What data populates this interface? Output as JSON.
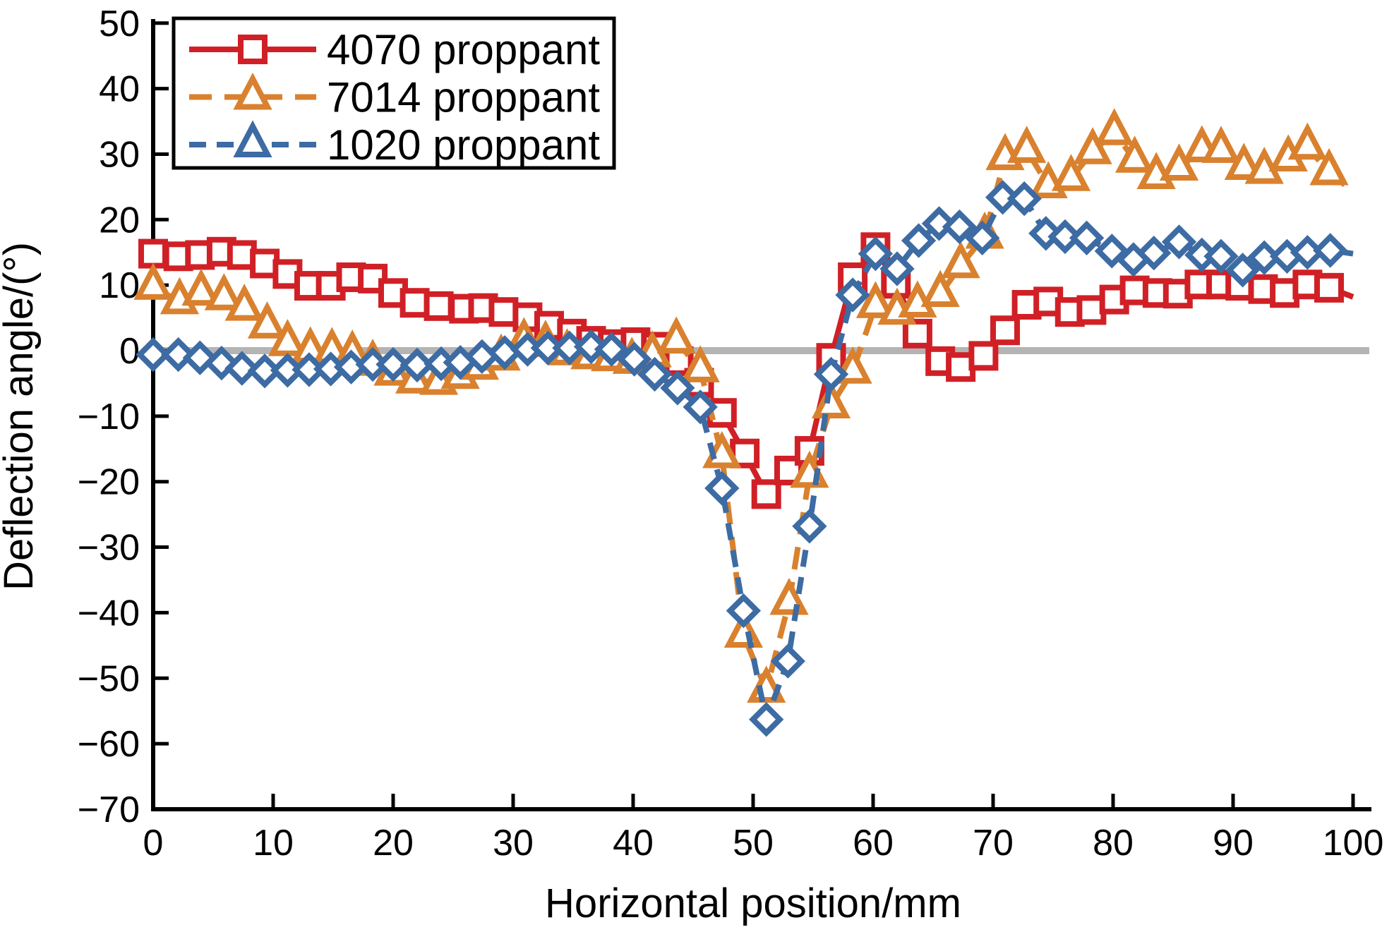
{
  "figure": {
    "background": "#ffffff",
    "axis_color": "#000000",
    "x_tick_labels": [
      "0",
      "10",
      "20",
      "30",
      "40",
      "50",
      "60",
      "70",
      "80",
      "90",
      "100"
    ],
    "y_tick_labels": [
      "−70",
      "−60",
      "−50",
      "−40",
      "−30",
      "−20",
      "−10",
      "0",
      "10",
      "20",
      "30",
      "40",
      "50"
    ]
  },
  "chart_data": {
    "type": "line",
    "title": "",
    "xlabel": "Horizontal position/mm",
    "ylabel": "Deflection angle/(°)",
    "xlim": [
      0,
      100
    ],
    "ylim": [
      -70,
      50
    ],
    "x_ticks": [
      0,
      10,
      20,
      30,
      40,
      50,
      60,
      70,
      80,
      90,
      100
    ],
    "y_ticks": [
      -70,
      -60,
      -50,
      -40,
      -30,
      -20,
      -10,
      0,
      10,
      20,
      30,
      40,
      50
    ],
    "grid": false,
    "zero_line": {
      "value": 0,
      "color": "#b4b4b4"
    },
    "legend_position": "top-left",
    "legend_border_color": "#000000",
    "series": [
      {
        "name": "4070 proppant",
        "color": "#d02026",
        "line_style": "solid",
        "marker": "square",
        "legend_marker": "square",
        "x": [
          0,
          2.1,
          3.9,
          5.7,
          7.4,
          9.3,
          11.2,
          13,
          14.8,
          16.5,
          18.3,
          20,
          21.8,
          23.8,
          25.9,
          27.5,
          29.2,
          31.2,
          33,
          34.9,
          36.5,
          38.3,
          40.2,
          41.9,
          43.8,
          45.5,
          47.4,
          49.3,
          51.1,
          53,
          54.7,
          56.5,
          58.3,
          60.2,
          61.9,
          63.7,
          65.6,
          67.3,
          69.2,
          71,
          72.8,
          74.6,
          76.4,
          78.2,
          80.1,
          81.8,
          83.7,
          85.4,
          87.2,
          89,
          90.6,
          92.5,
          94.3,
          96.2,
          98,
          100
        ],
        "y": [
          14.8,
          14.4,
          14.6,
          15.1,
          14.6,
          13.3,
          11.7,
          9.9,
          9.9,
          11.2,
          11,
          8.8,
          7.3,
          6.8,
          6.4,
          6.5,
          5.9,
          5.1,
          3.8,
          2.6,
          1.5,
          1,
          1.3,
          0.6,
          -1.6,
          -4.9,
          -9.5,
          -15.7,
          -21.9,
          -18.3,
          -15.3,
          -1.1,
          11.2,
          15.8,
          10.2,
          2.6,
          -1.6,
          -2.5,
          -0.8,
          3.1,
          7,
          7.5,
          5.9,
          6.2,
          7.8,
          9.2,
          8.8,
          8.7,
          10.1,
          10.1,
          9.9,
          9.4,
          8.8,
          10.1,
          9.6,
          8.2
        ]
      },
      {
        "name": "7014 proppant",
        "color": "#d9812e",
        "line_style": "dashed",
        "marker": "triangle",
        "legend_marker": "triangle",
        "x": [
          0,
          2.2,
          4,
          5.9,
          7.6,
          9.5,
          11.2,
          13.1,
          14.9,
          16.6,
          18.3,
          20,
          21.8,
          23.8,
          25.6,
          27.2,
          29,
          30.9,
          32.7,
          34.5,
          36.4,
          38.1,
          39.9,
          41.6,
          43.6,
          45.6,
          47.4,
          49.2,
          51.1,
          53,
          54.7,
          56.5,
          58.3,
          60.2,
          62,
          63.7,
          65.6,
          67.3,
          69.3,
          71,
          72.8,
          74.6,
          76.5,
          78.3,
          80.1,
          81.8,
          83.6,
          85.5,
          87.4,
          89,
          90.9,
          92.6,
          94.6,
          96.2,
          98,
          100
        ],
        "y": [
          9.7,
          7.5,
          8.8,
          8.1,
          6.5,
          3.8,
          1.1,
          0,
          -0.1,
          -0.5,
          -1.9,
          -3.4,
          -4.6,
          -4.8,
          -3.9,
          -2.5,
          -1.1,
          1.4,
          1,
          -0.3,
          -0.9,
          -1.2,
          -1.6,
          -0.6,
          1.5,
          -2.9,
          -16,
          -43.4,
          -51.8,
          -38.4,
          -19,
          -8.4,
          -3.1,
          6.9,
          5.9,
          7,
          8.6,
          13,
          17.5,
          29.5,
          30.6,
          25.2,
          26.3,
          30.4,
          33.3,
          29.1,
          26.6,
          27.9,
          30.7,
          30.6,
          28,
          27.4,
          29.3,
          31.1,
          27.2,
          24.3
        ]
      },
      {
        "name": "1020 proppant",
        "color": "#3d6ba3",
        "line_style": "dashed",
        "marker": "diamond",
        "legend_marker": "triangle",
        "x": [
          0,
          2.1,
          3.9,
          5.7,
          7.4,
          9.3,
          11.2,
          13,
          14.8,
          16.5,
          18.3,
          20,
          22,
          24,
          25.6,
          27.4,
          29.3,
          31.2,
          32.9,
          34.7,
          36.5,
          38.2,
          40.1,
          41.8,
          43.7,
          45.6,
          47.4,
          49.2,
          51.1,
          52.9,
          54.7,
          56.5,
          58.3,
          60.2,
          62,
          63.8,
          65.5,
          67.2,
          69.1,
          70.8,
          72.6,
          74.4,
          76,
          77.8,
          79.9,
          81.7,
          83.4,
          85.5,
          87.4,
          89,
          90.8,
          92.6,
          94.5,
          96.2,
          98.1,
          100
        ],
        "y": [
          -0.6,
          -0.6,
          -1.1,
          -1.9,
          -2.7,
          -3.1,
          -3,
          -2.9,
          -2.8,
          -2.5,
          -2.1,
          -2.1,
          -2.2,
          -2,
          -1.8,
          -0.9,
          -0.3,
          0.2,
          0.4,
          0.4,
          0.6,
          0.2,
          -1.3,
          -3.6,
          -5.7,
          -8.6,
          -21,
          -39.7,
          -56.3,
          -47.4,
          -26.8,
          -3.6,
          8.5,
          14.8,
          12.5,
          16.8,
          19.4,
          18.9,
          17.2,
          23.4,
          23.2,
          17.9,
          17.4,
          17.2,
          15.2,
          13.9,
          14.9,
          16.6,
          14.6,
          14.4,
          12.3,
          14.2,
          14.4,
          15,
          15.3,
          14.8
        ]
      }
    ]
  }
}
